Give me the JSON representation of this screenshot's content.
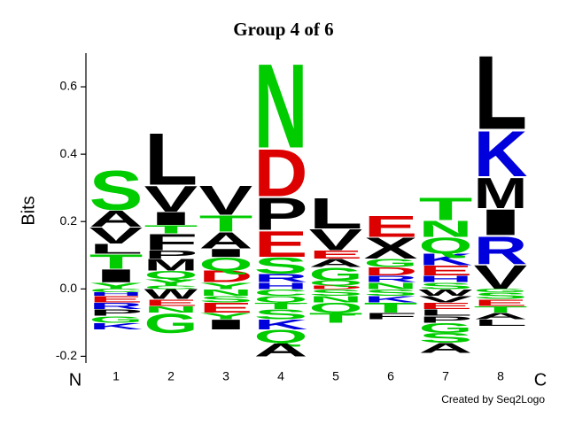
{
  "chart_data": {
    "type": "logo",
    "title": "Group 4 of 6",
    "ylabel": "Bits",
    "n_label": "N",
    "c_label": "C",
    "credit": "Created by Seq2Logo",
    "ylim": [
      -0.22,
      0.7
    ],
    "yticks": [
      -0.2,
      {
        "value": 0,
        "label": "0.0"
      },
      0.2,
      0.4,
      0.6
    ],
    "letter_colors": {
      "green": "#00cc00",
      "black": "#000000",
      "red": "#dd0000",
      "blue": "#0000dd"
    },
    "color_groups": {
      "S": "green",
      "T": "green",
      "N": "green",
      "Q": "green",
      "G": "green",
      "Y": "green",
      "C": "green",
      "A": "black",
      "V": "black",
      "L": "black",
      "I": "black",
      "P": "black",
      "W": "black",
      "F": "black",
      "M": "black",
      "X": "black",
      "D": "red",
      "E": "red",
      "K": "blue",
      "R": "blue",
      "H": "blue"
    },
    "positions": [
      {
        "label": "1",
        "letters": [
          {
            "letter": "Y",
            "height": 0.02
          },
          {
            "letter": "I",
            "height": 0.04
          },
          {
            "letter": "T",
            "height": 0.045
          },
          {
            "letter": "L",
            "height": 0.03
          },
          {
            "letter": "V",
            "height": 0.05
          },
          {
            "letter": "A",
            "height": 0.05
          },
          {
            "letter": "S",
            "height": 0.12
          },
          {
            "letter": "C",
            "height": -0.01
          },
          {
            "letter": "H",
            "height": -0.01
          },
          {
            "letter": "E",
            "height": -0.02
          },
          {
            "letter": "R",
            "height": -0.02
          },
          {
            "letter": "P",
            "height": -0.02
          },
          {
            "letter": "G",
            "height": -0.02
          },
          {
            "letter": "K",
            "height": -0.02
          }
        ]
      },
      {
        "label": "2",
        "letters": [
          {
            "letter": "C",
            "height": 0.01
          },
          {
            "letter": "Y",
            "height": 0.02
          },
          {
            "letter": "Q",
            "height": 0.025
          },
          {
            "letter": "M",
            "height": 0.035
          },
          {
            "letter": "P",
            "height": 0.025
          },
          {
            "letter": "F",
            "height": 0.05
          },
          {
            "letter": "T",
            "height": 0.025
          },
          {
            "letter": "I",
            "height": 0.04
          },
          {
            "letter": "V",
            "height": 0.08
          },
          {
            "letter": "L",
            "height": 0.16
          },
          {
            "letter": "W",
            "height": -0.03
          },
          {
            "letter": "E",
            "height": -0.02
          },
          {
            "letter": "N",
            "height": -0.02
          },
          {
            "letter": "G",
            "height": -0.06
          }
        ]
      },
      {
        "label": "3",
        "letters": [
          {
            "letter": "Y",
            "height": 0.02
          },
          {
            "letter": "D",
            "height": 0.035
          },
          {
            "letter": "Q",
            "height": 0.04
          },
          {
            "letter": "I",
            "height": 0.025
          },
          {
            "letter": "A",
            "height": 0.05
          },
          {
            "letter": "T",
            "height": 0.05
          },
          {
            "letter": "V",
            "height": 0.09
          },
          {
            "letter": "N",
            "height": -0.02
          },
          {
            "letter": "S",
            "height": -0.02
          },
          {
            "letter": "E",
            "height": -0.03
          },
          {
            "letter": "Y",
            "height": -0.02
          },
          {
            "letter": "I",
            "height": -0.03
          }
        ]
      },
      {
        "label": "4",
        "letters": [
          {
            "letter": "H",
            "height": 0.02
          },
          {
            "letter": "R",
            "height": 0.025
          },
          {
            "letter": "S",
            "height": 0.05
          },
          {
            "letter": "E",
            "height": 0.08
          },
          {
            "letter": "P",
            "height": 0.1
          },
          {
            "letter": "D",
            "height": 0.145
          },
          {
            "letter": "N",
            "height": 0.26
          },
          {
            "letter": "C",
            "height": -0.02
          },
          {
            "letter": "Q",
            "height": -0.02
          },
          {
            "letter": "T",
            "height": -0.02
          },
          {
            "letter": "S",
            "height": -0.03
          },
          {
            "letter": "K",
            "height": -0.03
          },
          {
            "letter": "Q",
            "height": -0.04
          },
          {
            "letter": "A",
            "height": -0.04
          }
        ]
      },
      {
        "label": "5",
        "letters": [
          {
            "letter": "D",
            "height": 0.01
          },
          {
            "letter": "Q",
            "height": 0.015
          },
          {
            "letter": "G",
            "height": 0.04
          },
          {
            "letter": "A",
            "height": 0.025
          },
          {
            "letter": "E",
            "height": 0.025
          },
          {
            "letter": "V",
            "height": 0.065
          },
          {
            "letter": "L",
            "height": 0.095
          },
          {
            "letter": "S",
            "height": -0.02
          },
          {
            "letter": "N",
            "height": -0.02
          },
          {
            "letter": "Q",
            "height": -0.03
          },
          {
            "letter": "T",
            "height": -0.03
          }
        ]
      },
      {
        "label": "6",
        "letters": [
          {
            "letter": "N",
            "height": 0.02
          },
          {
            "letter": "R",
            "height": 0.02
          },
          {
            "letter": "D",
            "height": 0.025
          },
          {
            "letter": "G",
            "height": 0.025
          },
          {
            "letter": "X",
            "height": 0.065
          },
          {
            "letter": "E",
            "height": 0.065
          },
          {
            "letter": "S",
            "height": -0.02
          },
          {
            "letter": "K",
            "height": -0.02
          },
          {
            "letter": "T",
            "height": -0.03
          },
          {
            "letter": "F",
            "height": -0.02
          }
        ]
      },
      {
        "label": "7",
        "letters": [
          {
            "letter": "S",
            "height": 0.02
          },
          {
            "letter": "H",
            "height": 0.02
          },
          {
            "letter": "E",
            "height": 0.03
          },
          {
            "letter": "K",
            "height": 0.035
          },
          {
            "letter": "Q",
            "height": 0.05
          },
          {
            "letter": "N",
            "height": 0.05
          },
          {
            "letter": "T",
            "height": 0.07
          },
          {
            "letter": "W",
            "height": -0.02
          },
          {
            "letter": "V",
            "height": -0.02
          },
          {
            "letter": "E",
            "height": -0.02
          },
          {
            "letter": "L",
            "height": -0.02
          },
          {
            "letter": "P",
            "height": -0.02
          },
          {
            "letter": "G",
            "height": -0.03
          },
          {
            "letter": "S",
            "height": -0.03
          },
          {
            "letter": "A",
            "height": -0.03
          }
        ]
      },
      {
        "label": "8",
        "letters": [
          {
            "letter": "V",
            "height": 0.075
          },
          {
            "letter": "R",
            "height": 0.085
          },
          {
            "letter": "I",
            "height": 0.08
          },
          {
            "letter": "M",
            "height": 0.095
          },
          {
            "letter": "K",
            "height": 0.14
          },
          {
            "letter": "L",
            "height": 0.227
          },
          {
            "letter": "G",
            "height": -0.01
          },
          {
            "letter": "S",
            "height": -0.02
          },
          {
            "letter": "E",
            "height": -0.02
          },
          {
            "letter": "T",
            "height": -0.02
          },
          {
            "letter": "A",
            "height": -0.02
          },
          {
            "letter": "L",
            "height": -0.02
          }
        ]
      }
    ]
  }
}
